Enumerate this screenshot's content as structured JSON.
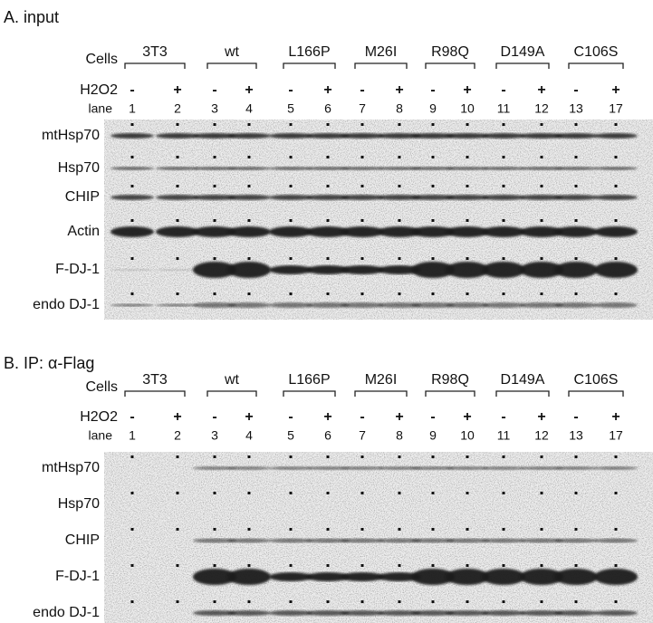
{
  "panels": [
    {
      "title": "A. input",
      "cells_label": "Cells",
      "groups": [
        "3T3",
        "wt",
        "L166P",
        "M26I",
        "R98Q",
        "D149A",
        "C106S"
      ],
      "h2o2_label": "H2O2",
      "treatments": [
        "-",
        "+",
        "-",
        "+",
        "-",
        "+",
        "-",
        "+",
        "-",
        "+",
        "-",
        "+",
        "-",
        "+"
      ],
      "lane_label": "lane",
      "lanes": [
        1,
        2,
        3,
        4,
        5,
        6,
        7,
        8,
        9,
        10,
        11,
        12,
        13,
        17
      ],
      "blots": [
        "mtHsp70",
        "Hsp70",
        "CHIP",
        "Actin",
        "F-DJ-1",
        "endo DJ-1"
      ]
    },
    {
      "title": "B. IP: α-Flag",
      "cells_label": "Cells",
      "groups": [
        "3T3",
        "wt",
        "L166P",
        "M26I",
        "R98Q",
        "D149A",
        "C106S"
      ],
      "h2o2_label": "H2O2",
      "treatments": [
        "-",
        "+",
        "-",
        "+",
        "-",
        "+",
        "-",
        "+",
        "-",
        "+",
        "-",
        "+",
        "-",
        "+"
      ],
      "lane_label": "lane",
      "lanes": [
        1,
        2,
        3,
        4,
        5,
        6,
        7,
        8,
        9,
        10,
        11,
        12,
        13,
        17
      ],
      "blots": [
        "mtHsp70",
        "Hsp70",
        "CHIP",
        "F-DJ-1",
        "endo DJ-1"
      ]
    }
  ]
}
